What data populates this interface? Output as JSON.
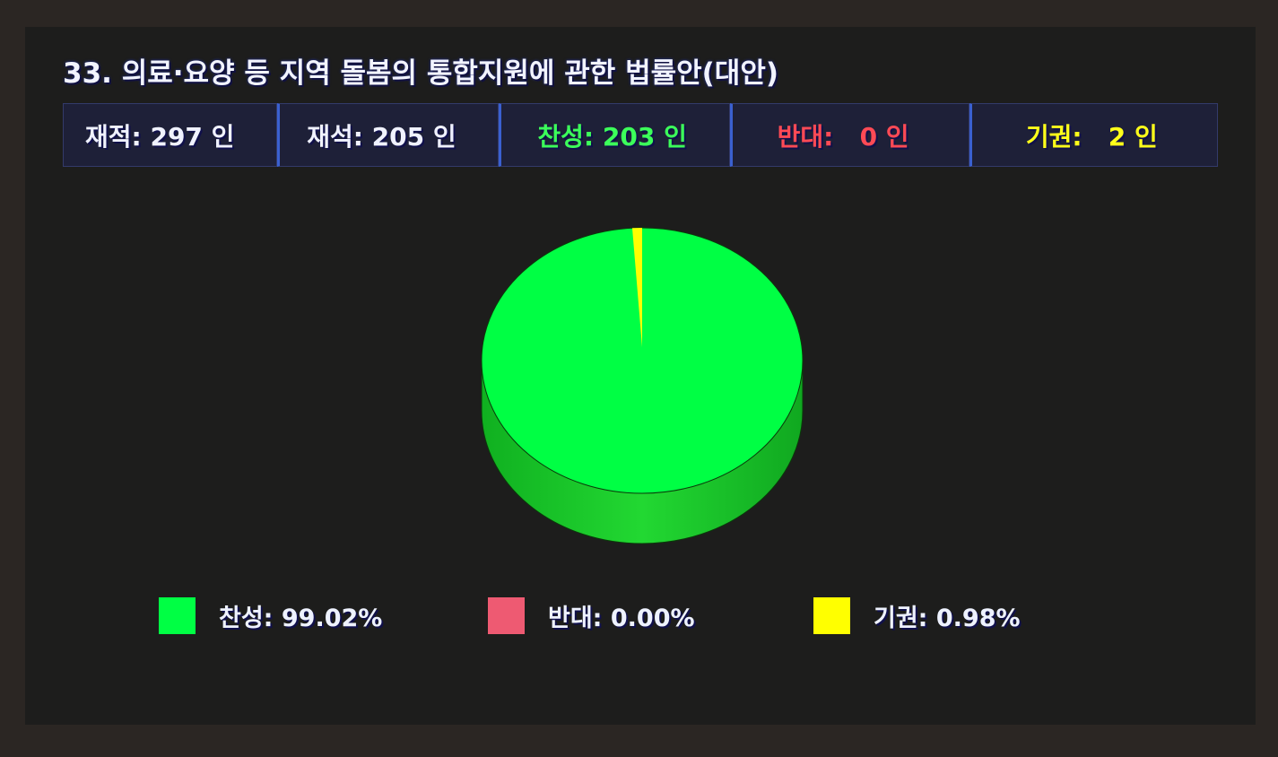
{
  "title": "33. 의료·요양 등 지역 돌봄의 통합지원에 관한 법률안(대안)",
  "stats": [
    {
      "label": "재적:",
      "value": "297 인",
      "color": "#f0f2ff"
    },
    {
      "label": "재석:",
      "value": "205 인",
      "color": "#f0f2ff"
    },
    {
      "label": "찬성:",
      "value": "203 인",
      "color": "#3cff5a"
    },
    {
      "label": "반대:",
      "value": "0 인",
      "color": "#ff4a55"
    },
    {
      "label": "기권:",
      "value": "2 인",
      "color": "#ffff1a"
    }
  ],
  "chart_data": {
    "type": "pie",
    "style": "3d",
    "categories": [
      "찬성",
      "반대",
      "기권"
    ],
    "values": [
      99.02,
      0.0,
      0.98
    ],
    "counts": [
      203,
      0,
      2
    ],
    "colors": [
      "#00ff44",
      "#ee5a72",
      "#ffff00"
    ],
    "legend": [
      "찬성: 99.02%",
      "반대: 0.00%",
      "기권: 0.98%"
    ],
    "legend_placement": "bottom"
  }
}
